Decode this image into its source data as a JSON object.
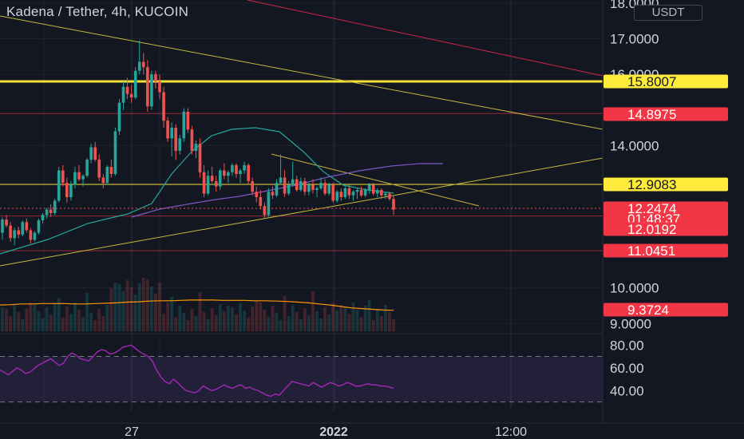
{
  "header": {
    "title": "Kadena / Tether, 4h, KUCOIN",
    "currency_button": "USDT"
  },
  "colors": {
    "background": "#131722",
    "up": "#26a69a",
    "down": "#ef5350",
    "yellow_line": "#ffeb3b",
    "red_line": "#f23645",
    "rsi": "#9c27b0"
  },
  "chart_data": {
    "type": "candlestick",
    "pair": "KDA/USDT",
    "interval": "4h",
    "exchange": "KUCOIN",
    "y_axis": {
      "ticks": [
        "18.0000",
        "17.0000",
        "16.0000",
        "14.0000",
        "10.0000",
        "9.0000"
      ],
      "range": [
        8.6,
        18.05
      ]
    },
    "x_axis": {
      "ticks": [
        "27",
        "2022",
        "12:00"
      ]
    },
    "price_labels": [
      {
        "value": "15.8007",
        "style": "yellow"
      },
      {
        "value": "14.8975",
        "style": "red"
      },
      {
        "value": "12.9083",
        "style": "yellow"
      },
      {
        "value": "12.2474",
        "style": "red"
      },
      {
        "value": "01:48:37",
        "style": "red"
      },
      {
        "value": "12.0192",
        "style": "red"
      },
      {
        "value": "11.0451",
        "style": "red"
      },
      {
        "value": "9.3724",
        "style": "red"
      }
    ],
    "horizontal_levels": [
      {
        "price": 15.8007,
        "color": "yellow"
      },
      {
        "price": 14.8975,
        "color": "red"
      },
      {
        "price": 12.9083,
        "color": "yellow"
      },
      {
        "price": 12.0192,
        "color": "red"
      },
      {
        "price": 11.0451,
        "color": "red"
      }
    ],
    "candles_ohlc": [
      [
        11.55,
        11.98,
        11.35,
        11.92
      ],
      [
        11.92,
        12.05,
        11.7,
        11.75
      ],
      [
        11.75,
        11.85,
        11.3,
        11.4
      ],
      [
        11.4,
        11.7,
        11.2,
        11.62
      ],
      [
        11.62,
        11.72,
        11.4,
        11.5
      ],
      [
        11.5,
        11.9,
        11.45,
        11.85
      ],
      [
        11.85,
        11.95,
        11.55,
        11.62
      ],
      [
        11.62,
        11.68,
        11.25,
        11.35
      ],
      [
        11.35,
        11.6,
        11.3,
        11.55
      ],
      [
        11.55,
        11.95,
        11.5,
        11.9
      ],
      [
        11.9,
        12.1,
        11.8,
        12.05
      ],
      [
        12.05,
        12.25,
        11.95,
        12.2
      ],
      [
        12.2,
        12.35,
        12.0,
        12.1
      ],
      [
        12.1,
        12.5,
        12.05,
        12.45
      ],
      [
        12.45,
        13.4,
        12.4,
        13.3
      ],
      [
        13.3,
        13.45,
        12.85,
        12.95
      ],
      [
        12.95,
        13.1,
        12.4,
        12.55
      ],
      [
        12.55,
        13.0,
        12.45,
        12.9
      ],
      [
        12.9,
        13.4,
        12.8,
        13.25
      ],
      [
        13.25,
        13.45,
        13.0,
        13.05
      ],
      [
        13.05,
        13.2,
        12.85,
        13.15
      ],
      [
        13.15,
        13.65,
        13.1,
        13.6
      ],
      [
        13.6,
        14.05,
        13.5,
        13.95
      ],
      [
        13.95,
        14.1,
        13.55,
        13.6
      ],
      [
        13.6,
        13.75,
        13.0,
        13.1
      ],
      [
        13.1,
        13.2,
        12.8,
        12.95
      ],
      [
        12.95,
        13.45,
        12.9,
        13.4
      ],
      [
        13.4,
        13.6,
        13.1,
        13.2
      ],
      [
        13.2,
        14.5,
        13.15,
        14.4
      ],
      [
        14.4,
        15.3,
        14.3,
        15.2
      ],
      [
        15.2,
        15.8,
        15.0,
        15.65
      ],
      [
        15.65,
        15.9,
        15.3,
        15.45
      ],
      [
        15.45,
        15.7,
        15.2,
        15.35
      ],
      [
        15.35,
        16.2,
        15.3,
        16.1
      ],
      [
        16.1,
        16.95,
        16.0,
        16.35
      ],
      [
        16.35,
        16.6,
        16.0,
        16.2
      ],
      [
        16.2,
        16.4,
        14.95,
        15.1
      ],
      [
        15.1,
        16.1,
        15.0,
        16.0
      ],
      [
        16.0,
        16.1,
        15.6,
        15.8
      ],
      [
        15.8,
        16.0,
        15.3,
        15.5
      ],
      [
        15.5,
        15.65,
        14.5,
        14.7
      ],
      [
        14.7,
        14.8,
        14.1,
        14.2
      ],
      [
        14.2,
        14.65,
        13.7,
        14.5
      ],
      [
        14.5,
        14.6,
        13.6,
        13.85
      ],
      [
        13.85,
        14.3,
        13.75,
        14.2
      ],
      [
        14.2,
        15.05,
        14.1,
        14.95
      ],
      [
        14.95,
        15.05,
        14.35,
        14.45
      ],
      [
        14.45,
        14.55,
        13.75,
        13.85
      ],
      [
        13.85,
        14.15,
        13.65,
        14.05
      ],
      [
        14.05,
        14.2,
        13.1,
        13.25
      ],
      [
        13.25,
        13.45,
        12.55,
        12.65
      ],
      [
        12.65,
        13.3,
        12.6,
        13.15
      ],
      [
        13.15,
        13.4,
        12.95,
        13.0
      ],
      [
        13.0,
        13.15,
        12.7,
        12.85
      ],
      [
        12.85,
        13.35,
        12.75,
        13.3
      ],
      [
        13.3,
        13.5,
        13.05,
        13.15
      ],
      [
        13.15,
        13.3,
        12.95,
        13.25
      ],
      [
        13.25,
        13.5,
        13.15,
        13.45
      ],
      [
        13.45,
        13.5,
        13.1,
        13.2
      ],
      [
        13.2,
        13.35,
        12.95,
        13.3
      ],
      [
        13.3,
        13.55,
        13.2,
        13.45
      ],
      [
        13.45,
        13.5,
        12.9,
        13.0
      ],
      [
        13.0,
        13.1,
        12.6,
        12.7
      ],
      [
        12.7,
        12.85,
        12.4,
        12.55
      ],
      [
        12.55,
        12.75,
        12.2,
        12.3
      ],
      [
        12.3,
        12.4,
        11.95,
        12.05
      ],
      [
        12.05,
        12.8,
        12.0,
        12.7
      ],
      [
        12.7,
        12.85,
        12.5,
        12.6
      ],
      [
        12.6,
        13.05,
        12.55,
        12.95
      ],
      [
        12.95,
        13.75,
        12.9,
        13.1
      ],
      [
        13.1,
        13.3,
        12.55,
        12.65
      ],
      [
        12.65,
        13.0,
        12.6,
        12.9
      ],
      [
        12.9,
        13.55,
        12.85,
        13.05
      ],
      [
        13.05,
        13.15,
        12.7,
        12.75
      ],
      [
        12.75,
        13.1,
        12.7,
        13.0
      ],
      [
        13.0,
        13.1,
        12.6,
        12.7
      ],
      [
        12.7,
        12.95,
        12.6,
        12.9
      ],
      [
        12.9,
        13.05,
        12.65,
        12.75
      ],
      [
        12.75,
        12.85,
        12.55,
        12.8
      ],
      [
        12.8,
        13.1,
        12.75,
        12.95
      ],
      [
        12.95,
        13.05,
        12.6,
        12.65
      ],
      [
        12.65,
        12.95,
        12.6,
        12.9
      ],
      [
        12.9,
        12.95,
        12.4,
        12.45
      ],
      [
        12.45,
        12.75,
        12.4,
        12.7
      ],
      [
        12.7,
        12.8,
        12.45,
        12.55
      ],
      [
        12.55,
        12.85,
        12.5,
        12.8
      ],
      [
        12.8,
        12.9,
        12.5,
        12.6
      ],
      [
        12.6,
        12.75,
        12.45,
        12.7
      ],
      [
        12.7,
        12.8,
        12.5,
        12.75
      ],
      [
        12.75,
        12.85,
        12.55,
        12.6
      ],
      [
        12.6,
        12.8,
        12.55,
        12.75
      ],
      [
        12.75,
        12.95,
        12.65,
        12.9
      ],
      [
        12.9,
        12.95,
        12.6,
        12.65
      ],
      [
        12.65,
        12.8,
        12.55,
        12.75
      ],
      [
        12.75,
        12.8,
        12.5,
        12.6
      ],
      [
        12.6,
        12.7,
        12.5,
        12.65
      ],
      [
        12.65,
        12.7,
        12.45,
        12.5
      ],
      [
        12.5,
        12.6,
        12.05,
        12.2
      ]
    ],
    "rsi": {
      "ticks": [
        "80.00",
        "60.00",
        "40.00"
      ],
      "range": [
        22,
        90
      ],
      "bands": [
        70,
        30
      ],
      "values": [
        58,
        56,
        54,
        57,
        60,
        58,
        55,
        56,
        59,
        62,
        64,
        66,
        68,
        65,
        62,
        64,
        70,
        73,
        71,
        68,
        67,
        66,
        70,
        74,
        76,
        75,
        72,
        73,
        75,
        78,
        79,
        80,
        77,
        74,
        72,
        70,
        66,
        58,
        52,
        48,
        46,
        50,
        47,
        43,
        40,
        39,
        38,
        40,
        44,
        42,
        40,
        41,
        43,
        45,
        43,
        42,
        44,
        45,
        42,
        43,
        41,
        40,
        38,
        36,
        35,
        37,
        36,
        40,
        44,
        48,
        47,
        46,
        45,
        44,
        47,
        45,
        43,
        45,
        47,
        46,
        44,
        45,
        47,
        46,
        44,
        44,
        45,
        46,
        45,
        45,
        44,
        44,
        43,
        42
      ]
    },
    "volume_ma": [
      9.52,
      9.53,
      9.55,
      9.55,
      9.56,
      9.56,
      9.56,
      9.55,
      9.55,
      9.56,
      9.57,
      9.58,
      9.6,
      9.61,
      9.63,
      9.64,
      9.64,
      9.65,
      9.66,
      9.66,
      9.66,
      9.65,
      9.65,
      9.65,
      9.64,
      9.64,
      9.63,
      9.62,
      9.6,
      9.58,
      9.55,
      9.52,
      9.48,
      9.44,
      9.42,
      9.4,
      9.38,
      9.37
    ]
  }
}
